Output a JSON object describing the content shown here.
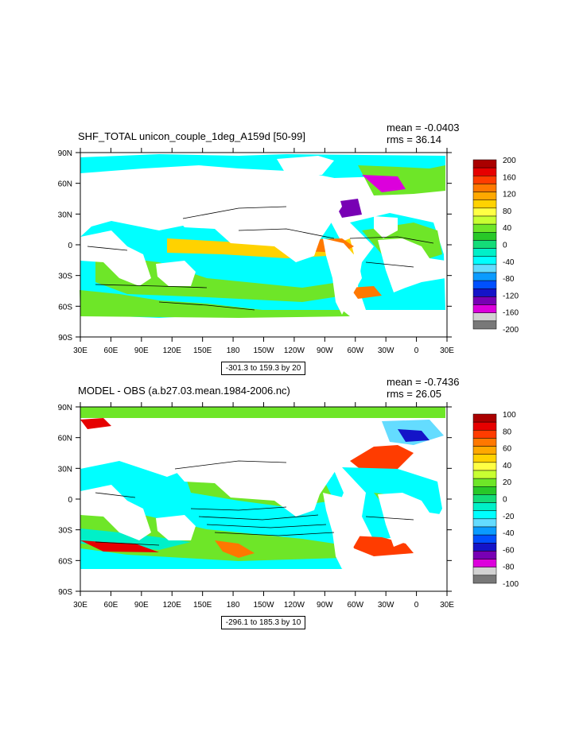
{
  "chart_data": [
    {
      "type": "heatmap",
      "title": "SHF_TOTAL unicon_couple_1deg_A159d [50-99]",
      "stats": {
        "mean": "mean = -0.0403",
        "rms": "rms = 36.14"
      },
      "info": "-301.3 to 159.3 by 20",
      "x_ticks": [
        "30E",
        "60E",
        "90E",
        "120E",
        "150E",
        "180",
        "150W",
        "120W",
        "90W",
        "60W",
        "30W",
        "0",
        "30E"
      ],
      "y_ticks": [
        "90N",
        "60N",
        "30N",
        "0",
        "30S",
        "60S",
        "90S"
      ],
      "colorbar": {
        "labels": [
          "200",
          "160",
          "120",
          "80",
          "40",
          "0",
          "-40",
          "-80",
          "-120",
          "-160",
          "-200"
        ],
        "colors": [
          "#aa0000",
          "#e60000",
          "#ff3c00",
          "#ff7800",
          "#ffa800",
          "#ffd200",
          "#ffff44",
          "#c8ff32",
          "#6ee628",
          "#28c828",
          "#14dc78",
          "#00f0c8",
          "#00ffff",
          "#64dcff",
          "#0a9bff",
          "#0050ff",
          "#1414c8",
          "#7800b4",
          "#dc00dc",
          "#d2d2d2",
          "#787878"
        ]
      }
    },
    {
      "type": "heatmap",
      "title": "MODEL - OBS (a.b27.03.mean.1984-2006.nc)",
      "stats": {
        "mean": "mean = -0.7436",
        "rms": "rms = 26.05"
      },
      "info": "-296.1 to 185.3 by 10",
      "x_ticks": [
        "30E",
        "60E",
        "90E",
        "120E",
        "150E",
        "180",
        "150W",
        "120W",
        "90W",
        "60W",
        "30W",
        "0",
        "30E"
      ],
      "y_ticks": [
        "90N",
        "60N",
        "30N",
        "0",
        "30S",
        "60S",
        "90S"
      ],
      "colorbar": {
        "labels": [
          "100",
          "80",
          "60",
          "40",
          "20",
          "0",
          "-20",
          "-40",
          "-60",
          "-80",
          "-100"
        ],
        "colors": [
          "#aa0000",
          "#e60000",
          "#ff3c00",
          "#ff7800",
          "#ffa800",
          "#ffd200",
          "#ffff44",
          "#c8ff32",
          "#6ee628",
          "#28c828",
          "#14dc78",
          "#00f0c8",
          "#00ffff",
          "#64dcff",
          "#0a9bff",
          "#0050ff",
          "#1414c8",
          "#7800b4",
          "#dc00dc",
          "#d2d2d2",
          "#787878"
        ]
      }
    }
  ]
}
